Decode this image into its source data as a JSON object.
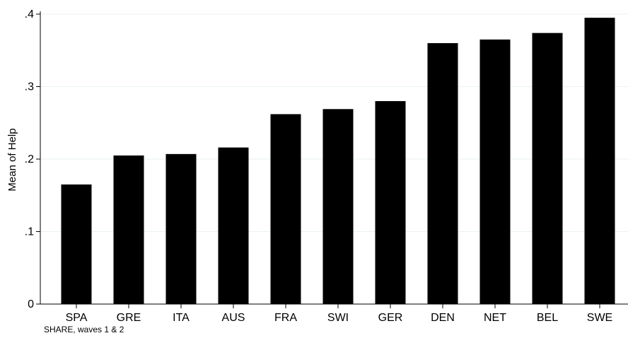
{
  "chart_data": {
    "type": "bar",
    "title": "",
    "xlabel": "",
    "ylabel": "Mean of Help",
    "note": "SHARE, waves 1 & 2",
    "categories": [
      "SPA",
      "GRE",
      "ITA",
      "AUS",
      "FRA",
      "SWI",
      "GER",
      "DEN",
      "NET",
      "BEL",
      "SWE"
    ],
    "values": [
      0.165,
      0.205,
      0.207,
      0.216,
      0.262,
      0.269,
      0.28,
      0.36,
      0.365,
      0.374,
      0.395
    ],
    "ylim": [
      0,
      0.4
    ],
    "yticks": [
      0,
      0.1,
      0.2,
      0.3,
      0.4
    ],
    "ytick_labels": [
      "0",
      ".1",
      ".2",
      ".3",
      ".4"
    ],
    "grid": "horizontal",
    "bar_color": "#000000",
    "grid_color": "#eaf2f3",
    "legend": "none"
  }
}
